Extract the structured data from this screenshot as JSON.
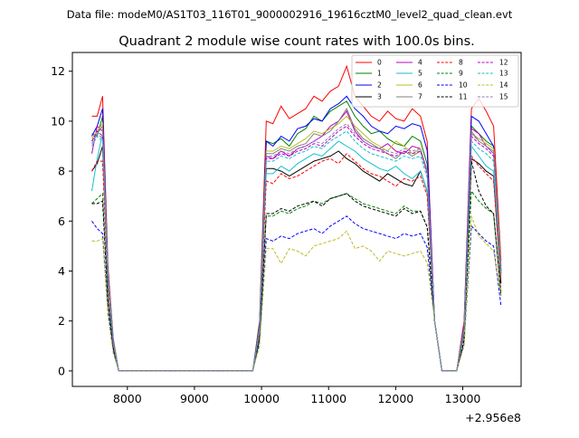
{
  "suptitle": "Data file: modeM0/AS1T03_116T01_9000002916_19616cztM0_level2_quad_clean.evt",
  "chart_data": {
    "type": "line",
    "title": "Quadrant 2 module wise count rates with 100.0s bins.",
    "xlabel": "",
    "ylabel": "",
    "offset_label": "+2.956e8",
    "xlim": [
      7180,
      13870
    ],
    "ylim": [
      -0.62,
      12.75
    ],
    "x_ticks": [
      8000,
      9000,
      10000,
      11000,
      12000,
      13000
    ],
    "x_tick_labels": [
      "8000",
      "9000",
      "10000",
      "11000",
      "12000",
      "13000"
    ],
    "y_ticks": [
      0,
      2,
      4,
      6,
      8,
      10,
      12
    ],
    "y_tick_labels": [
      "0",
      "2",
      "4",
      "6",
      "8",
      "10",
      "12"
    ],
    "grid": false,
    "legend_position": "top-right",
    "segments": [
      {
        "x_start": 7470,
        "x_end": 7870
      },
      {
        "x_start": 9870,
        "x_end": 12770
      },
      {
        "x_start": 12770,
        "x_end": 13570
      }
    ],
    "series": [
      {
        "name": "0",
        "color": "#ff0000",
        "dash": "solid",
        "seg1": [
          10.2,
          10.2,
          11.0,
          4.2,
          1.3,
          0.0
        ],
        "seg2_end": [
          0.0,
          0.0,
          2.0,
          10.0
        ],
        "seg2": [
          9.9,
          10.6,
          10.1,
          10.3,
          10.5,
          11.0,
          10.8,
          11.2,
          11.4,
          12.2,
          11.0,
          10.6,
          10.2,
          10.0,
          10.4,
          10.1,
          10.0,
          10.5,
          10.2
        ],
        "seg3": [
          0.0,
          0.0,
          0.0,
          2.0,
          10.5,
          10.9,
          10.4,
          9.8,
          4.4
        ]
      },
      {
        "name": "1",
        "color": "#008000",
        "dash": "solid",
        "seg1": [
          9.5,
          9.4,
          10.2,
          4.0,
          1.2,
          0.0
        ],
        "seg2_end": [
          0.0,
          0.0,
          1.9,
          9.2
        ],
        "seg2": [
          9.1,
          9.3,
          9.0,
          9.5,
          9.7,
          10.2,
          10.0,
          10.4,
          10.6,
          10.8,
          10.2,
          9.8,
          9.5,
          9.6,
          9.3,
          9.1,
          9.0,
          9.4,
          9.2
        ],
        "seg3": [
          0.0,
          0.0,
          0.0,
          1.8,
          9.8,
          9.5,
          9.2,
          9.0,
          4.2
        ]
      },
      {
        "name": "2",
        "color": "#0000ff",
        "dash": "solid",
        "seg1": [
          9.4,
          9.8,
          10.5,
          4.0,
          1.2,
          0.0
        ],
        "seg2_end": [
          0.0,
          0.0,
          1.8,
          9.2
        ],
        "seg2": [
          9.0,
          9.4,
          9.2,
          9.7,
          9.8,
          10.1,
          10.0,
          10.5,
          10.7,
          11.0,
          10.5,
          10.2,
          9.8,
          9.6,
          9.5,
          9.8,
          9.7,
          9.9,
          9.8
        ],
        "seg3": [
          0.0,
          0.0,
          0.0,
          1.8,
          10.2,
          10.0,
          9.5,
          9.0,
          4.0
        ]
      },
      {
        "name": "3",
        "color": "#000000",
        "dash": "solid",
        "seg1": [
          8.0,
          8.3,
          9.0,
          3.6,
          1.1,
          0.0
        ],
        "seg2_end": [
          0.0,
          0.0,
          1.6,
          8.1
        ],
        "seg2": [
          8.1,
          8.0,
          7.8,
          8.0,
          8.2,
          8.4,
          8.5,
          8.6,
          8.8,
          8.5,
          8.3,
          8.0,
          7.8,
          7.6,
          7.9,
          7.7,
          7.5,
          7.4,
          8.0
        ],
        "seg3": [
          0.0,
          0.0,
          0.0,
          1.5,
          8.5,
          8.3,
          8.0,
          7.8,
          3.5
        ]
      },
      {
        "name": "4",
        "color": "#bf00bf",
        "dash": "solid",
        "seg1": [
          8.7,
          9.8,
          9.6,
          3.8,
          1.2,
          0.0
        ],
        "seg2_end": [
          0.0,
          0.0,
          1.7,
          8.6
        ],
        "seg2": [
          8.5,
          8.8,
          8.6,
          8.9,
          9.0,
          9.2,
          9.4,
          9.8,
          10.0,
          10.4,
          9.6,
          9.2,
          9.0,
          8.9,
          9.1,
          8.8,
          8.7,
          9.0,
          8.9
        ],
        "seg3": [
          0.0,
          0.0,
          0.0,
          1.7,
          9.7,
          9.5,
          9.0,
          8.7,
          3.9
        ]
      },
      {
        "name": "5",
        "color": "#17becf",
        "dash": "solid",
        "seg1": [
          7.2,
          8.5,
          9.5,
          3.6,
          1.1,
          0.0
        ],
        "seg2_end": [
          0.0,
          0.0,
          1.6,
          7.9
        ],
        "seg2": [
          7.9,
          8.2,
          8.0,
          8.3,
          8.5,
          8.7,
          8.6,
          8.9,
          9.2,
          9.0,
          8.8,
          8.5,
          8.3,
          8.1,
          8.0,
          8.2,
          7.9,
          7.7,
          8.0
        ],
        "seg3": [
          0.0,
          0.0,
          0.0,
          1.6,
          9.0,
          8.6,
          8.2,
          8.0,
          3.8
        ]
      },
      {
        "name": "6",
        "color": "#bcbd22",
        "dash": "solid",
        "seg1": [
          9.3,
          9.6,
          9.9,
          3.9,
          1.2,
          0.0
        ],
        "seg2_end": [
          0.0,
          0.0,
          1.7,
          8.8
        ],
        "seg2": [
          8.8,
          9.0,
          8.9,
          9.1,
          9.3,
          9.6,
          9.5,
          9.7,
          9.9,
          10.2,
          9.8,
          9.5,
          9.2,
          9.0,
          8.8,
          9.2,
          9.0,
          8.7,
          8.9
        ],
        "seg3": [
          0.0,
          0.0,
          0.0,
          1.7,
          9.5,
          9.3,
          9.1,
          8.9,
          4.1
        ]
      },
      {
        "name": "7",
        "color": "#808080",
        "dash": "solid",
        "seg1": [
          9.2,
          9.5,
          9.8,
          3.9,
          1.2,
          0.0
        ],
        "seg2_end": [
          0.0,
          0.0,
          1.7,
          8.7
        ],
        "seg2": [
          8.7,
          8.9,
          8.8,
          9.0,
          9.1,
          9.5,
          9.4,
          9.6,
          10.0,
          10.5,
          9.7,
          9.3,
          9.1,
          8.9,
          8.7,
          8.5,
          8.8,
          8.6,
          8.8
        ],
        "seg3": [
          0.0,
          0.0,
          0.0,
          1.7,
          9.6,
          9.2,
          9.0,
          8.8,
          4.0
        ]
      },
      {
        "name": "8",
        "color": "#ff0000",
        "dash": "dashed",
        "seg1": [
          8.0,
          8.4,
          8.4,
          3.4,
          1.0,
          0.0
        ],
        "seg2_end": [
          0.0,
          0.0,
          1.5,
          7.6
        ],
        "seg2": [
          7.5,
          7.9,
          7.7,
          7.8,
          8.0,
          8.2,
          8.4,
          8.5,
          8.3,
          8.7,
          8.4,
          8.1,
          7.9,
          7.8,
          7.6,
          7.4,
          7.7,
          7.6,
          7.8
        ],
        "seg3": [
          0.0,
          0.0,
          0.0,
          1.5,
          8.6,
          8.2,
          7.9,
          7.6,
          3.6
        ]
      },
      {
        "name": "9",
        "color": "#008000",
        "dash": "dashed",
        "seg1": [
          6.7,
          6.9,
          7.1,
          2.9,
          0.9,
          0.0
        ],
        "seg2_end": [
          0.0,
          0.0,
          1.3,
          6.2
        ],
        "seg2": [
          6.2,
          6.4,
          6.3,
          6.5,
          6.6,
          6.8,
          6.7,
          6.9,
          7.0,
          7.1,
          6.9,
          6.7,
          6.6,
          6.5,
          6.4,
          6.3,
          6.6,
          6.4,
          6.4
        ],
        "seg3": [
          0.0,
          0.0,
          0.0,
          1.3,
          7.2,
          6.8,
          6.5,
          6.3,
          3.0
        ]
      },
      {
        "name": "10",
        "color": "#0000ff",
        "dash": "dashed",
        "seg1": [
          6.0,
          5.7,
          5.5,
          2.4,
          0.8,
          0.0
        ],
        "seg2_end": [
          0.0,
          0.0,
          1.1,
          5.3
        ],
        "seg2": [
          5.2,
          5.4,
          5.3,
          5.5,
          5.6,
          5.7,
          5.5,
          5.8,
          6.0,
          6.2,
          5.9,
          5.7,
          5.6,
          5.5,
          5.4,
          5.3,
          5.5,
          5.4,
          5.5
        ],
        "seg3": [
          0.0,
          0.0,
          0.0,
          1.1,
          5.8,
          5.5,
          5.2,
          5.0,
          2.6
        ]
      },
      {
        "name": "11",
        "color": "#000000",
        "dash": "dashed",
        "seg1": [
          6.7,
          6.7,
          6.8,
          2.8,
          0.9,
          0.0
        ],
        "seg2_end": [
          0.0,
          0.0,
          1.3,
          6.3
        ],
        "seg2": [
          6.3,
          6.5,
          6.4,
          6.6,
          6.7,
          6.8,
          6.6,
          6.9,
          7.0,
          7.1,
          6.8,
          6.6,
          6.5,
          6.4,
          6.3,
          6.2,
          6.5,
          6.3,
          6.4
        ],
        "seg3": [
          0.0,
          0.0,
          0.0,
          1.2,
          8.4,
          7.2,
          6.6,
          6.3,
          3.1
        ]
      },
      {
        "name": "12",
        "color": "#bf00bf",
        "dash": "dashed",
        "seg1": [
          9.2,
          9.6,
          9.4,
          3.8,
          1.1,
          0.0
        ],
        "seg2_end": [
          0.0,
          0.0,
          1.6,
          8.5
        ],
        "seg2": [
          8.5,
          8.7,
          8.6,
          8.8,
          8.9,
          9.1,
          9.0,
          9.3,
          9.6,
          9.8,
          9.4,
          9.1,
          8.9,
          8.8,
          8.7,
          8.6,
          8.8,
          8.7,
          8.8
        ],
        "seg3": [
          0.0,
          0.0,
          0.0,
          1.6,
          9.4,
          9.1,
          8.9,
          8.6,
          4.0
        ]
      },
      {
        "name": "13",
        "color": "#17becf",
        "dash": "dashed",
        "seg1": [
          9.0,
          9.4,
          9.2,
          3.7,
          1.1,
          0.0
        ],
        "seg2_end": [
          0.0,
          0.0,
          1.6,
          8.4
        ],
        "seg2": [
          8.4,
          8.6,
          8.5,
          8.7,
          8.8,
          9.0,
          8.9,
          9.2,
          9.4,
          9.6,
          9.2,
          8.9,
          8.7,
          8.6,
          8.5,
          8.4,
          8.6,
          8.5,
          8.6
        ],
        "seg3": [
          0.0,
          0.0,
          0.0,
          1.6,
          9.2,
          8.9,
          8.7,
          8.4,
          3.9
        ]
      },
      {
        "name": "14",
        "color": "#bcbd22",
        "dash": "dashed",
        "seg1": [
          5.2,
          5.2,
          5.3,
          2.2,
          0.7,
          0.0
        ],
        "seg2_end": [
          0.0,
          0.0,
          1.0,
          4.9
        ],
        "seg2": [
          4.9,
          4.3,
          4.9,
          4.8,
          4.6,
          5.0,
          5.1,
          5.2,
          5.3,
          5.6,
          4.9,
          5.0,
          4.8,
          4.4,
          4.8,
          4.7,
          4.6,
          4.7,
          4.8
        ],
        "seg3": [
          0.0,
          0.0,
          0.0,
          1.0,
          6.2,
          5.4,
          5.1,
          4.8,
          3.0
        ]
      },
      {
        "name": "15",
        "color": "#8c7fb8",
        "dash": "dashed",
        "seg1": [
          9.1,
          9.5,
          9.3,
          3.8,
          1.1,
          0.0
        ],
        "seg2_end": [
          0.0,
          0.0,
          1.6,
          8.6
        ],
        "seg2": [
          8.6,
          8.8,
          8.7,
          8.9,
          9.0,
          9.2,
          9.1,
          9.4,
          9.7,
          9.9,
          9.5,
          9.2,
          9.0,
          8.9,
          8.8,
          8.7,
          8.9,
          8.8,
          8.9
        ],
        "seg3": [
          0.0,
          0.0,
          0.0,
          1.6,
          9.5,
          9.2,
          9.0,
          8.7,
          4.0
        ]
      }
    ]
  }
}
